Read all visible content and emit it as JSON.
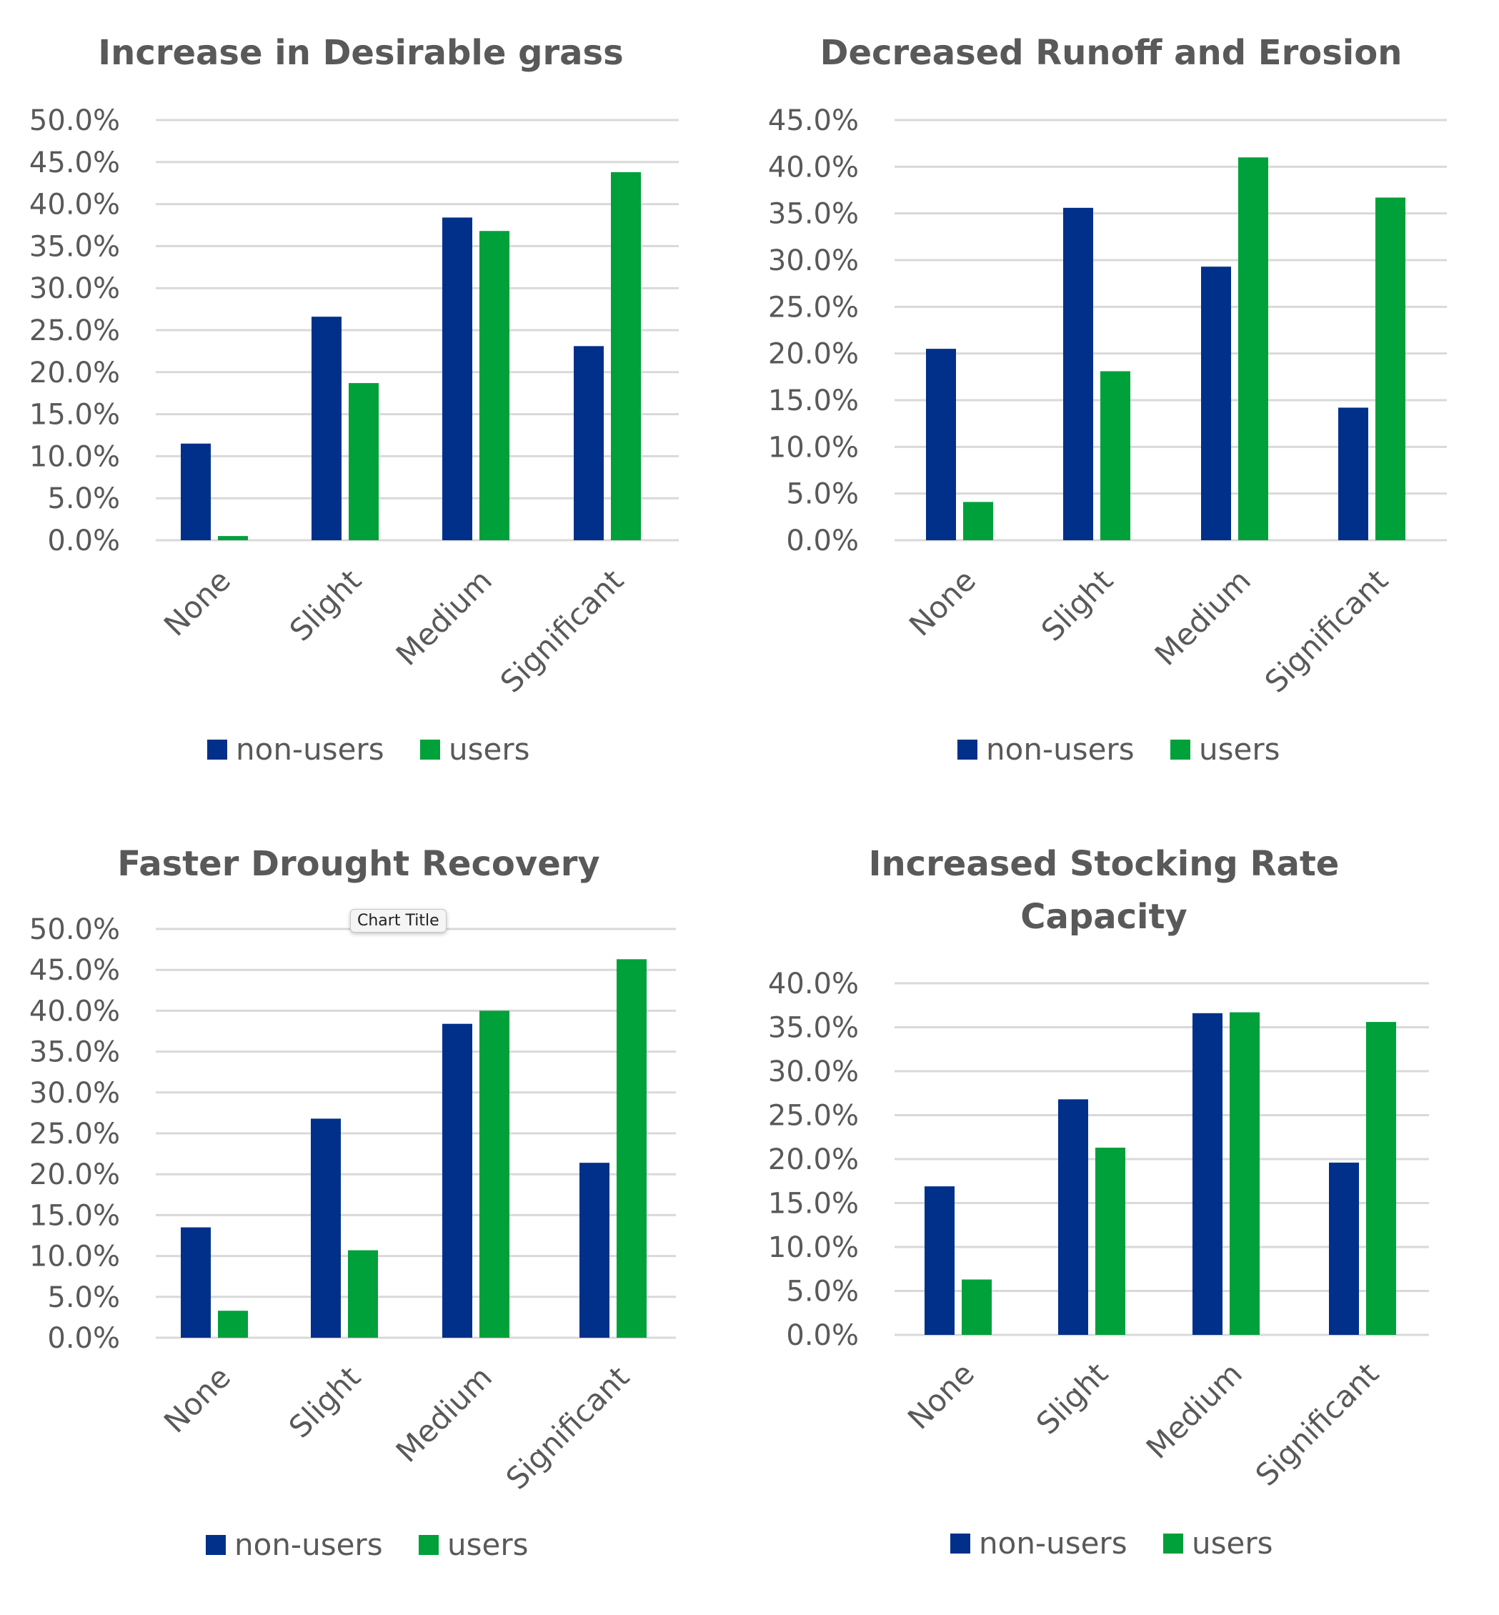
{
  "colors": {
    "non_users": "#00308a",
    "users": "#00a03a"
  },
  "tooltip": {
    "text": "Chart Title"
  },
  "chart_data": [
    {
      "type": "bar",
      "title": [
        "Increase in Desirable grass"
      ],
      "categories": [
        "None",
        "Slight",
        "Medium",
        "Significant"
      ],
      "series": [
        {
          "name": "non-users",
          "values": [
            11.5,
            26.6,
            38.4,
            23.1
          ]
        },
        {
          "name": "users",
          "values": [
            0.5,
            18.7,
            36.8,
            43.8
          ]
        }
      ],
      "ylim": [
        0,
        50
      ],
      "ytick_step": 5,
      "yticks": [
        "0.0%",
        "5.0%",
        "10.0%",
        "15.0%",
        "20.0%",
        "25.0%",
        "30.0%",
        "35.0%",
        "40.0%",
        "45.0%",
        "50.0%"
      ],
      "legend": "bottom",
      "grid": true
    },
    {
      "type": "bar",
      "title": [
        "Decreased Runoff and Erosion"
      ],
      "categories": [
        "None",
        "Slight",
        "Medium",
        "Significant"
      ],
      "series": [
        {
          "name": "non-users",
          "values": [
            20.5,
            35.6,
            29.3,
            14.2
          ]
        },
        {
          "name": "users",
          "values": [
            4.1,
            18.1,
            41.0,
            36.7
          ]
        }
      ],
      "ylim": [
        0,
        45
      ],
      "ytick_step": 5,
      "yticks": [
        "0.0%",
        "5.0%",
        "10.0%",
        "15.0%",
        "20.0%",
        "25.0%",
        "30.0%",
        "35.0%",
        "40.0%",
        "45.0%"
      ],
      "legend": "bottom",
      "grid": true
    },
    {
      "type": "bar",
      "title": [
        "Faster Drought Recovery"
      ],
      "categories": [
        "None",
        "Slight",
        "Medium",
        "Significant"
      ],
      "series": [
        {
          "name": "non-users",
          "values": [
            13.5,
            26.8,
            38.4,
            21.4
          ]
        },
        {
          "name": "users",
          "values": [
            3.3,
            10.7,
            40.0,
            46.3
          ]
        }
      ],
      "ylim": [
        0,
        50
      ],
      "ytick_step": 5,
      "yticks": [
        "0.0%",
        "5.0%",
        "10.0%",
        "15.0%",
        "20.0%",
        "25.0%",
        "30.0%",
        "35.0%",
        "40.0%",
        "45.0%",
        "50.0%"
      ],
      "legend": "bottom",
      "grid": true
    },
    {
      "type": "bar",
      "title": [
        "Increased Stocking Rate",
        "Capacity"
      ],
      "categories": [
        "None",
        "Slight",
        "Medium",
        "Significant"
      ],
      "series": [
        {
          "name": "non-users",
          "values": [
            16.9,
            26.8,
            36.6,
            19.6
          ]
        },
        {
          "name": "users",
          "values": [
            6.3,
            21.3,
            36.7,
            35.6
          ]
        }
      ],
      "ylim": [
        0,
        40
      ],
      "ytick_step": 5,
      "yticks": [
        "0.0%",
        "5.0%",
        "10.0%",
        "15.0%",
        "20.0%",
        "25.0%",
        "30.0%",
        "35.0%",
        "40.0%"
      ],
      "legend": "bottom",
      "grid": true
    }
  ]
}
